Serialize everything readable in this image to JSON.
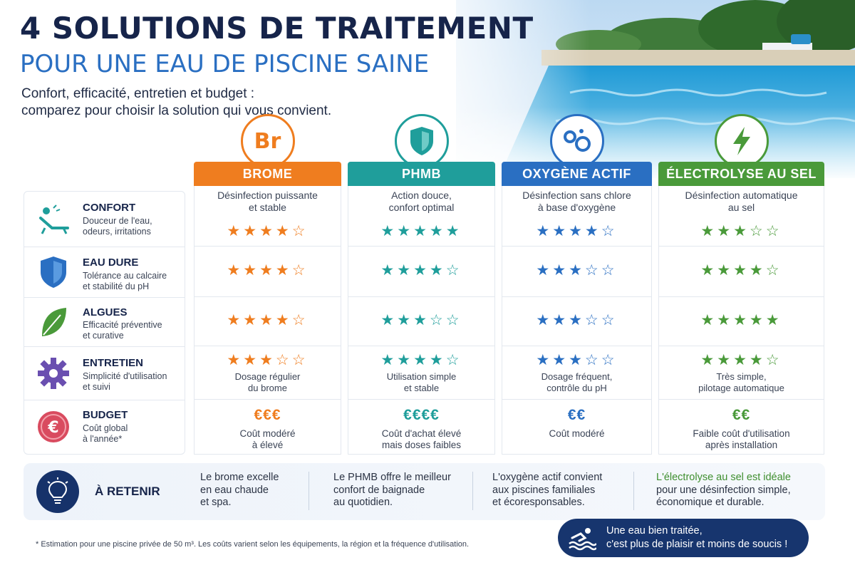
{
  "header": {
    "title_line1": "4 SOLUTIONS DE TRAITEMENT",
    "title_line2": "POUR UNE EAU DE PISCINE SAINE",
    "subtitle_line1": "Confort, efficacité, entretien et budget :",
    "subtitle_line2": "comparez pour choisir la solution qui vous convient."
  },
  "criteria": [
    {
      "title": "CONFORT",
      "sub1": "Douceur de l'eau,",
      "sub2": "odeurs, irritations",
      "icon": "lounger-icon"
    },
    {
      "title": "EAU DURE",
      "sub1": "Tolérance au calcaire",
      "sub2": "et stabilité du pH",
      "icon": "shield-icon"
    },
    {
      "title": "ALGUES",
      "sub1": "Efficacité préventive",
      "sub2": "et curative",
      "icon": "leaf-icon"
    },
    {
      "title": "ENTRETIEN",
      "sub1": "Simplicité d'utilisation",
      "sub2": "et suivi",
      "icon": "gear-icon"
    },
    {
      "title": "BUDGET",
      "sub1": "Coût global",
      "sub2": "à l'année*",
      "icon": "euro-icon"
    }
  ],
  "solutions": [
    {
      "name": "BROME",
      "color": "#ef7d1f",
      "icon_text": "Br",
      "desc1": "Désinfection puissante",
      "desc2": "et stable",
      "stars": [
        "★★★★☆",
        "★★★★☆",
        "★★★★☆",
        "★★★☆☆"
      ],
      "entretien_note1": "Dosage régulier",
      "entretien_note2": "du brome",
      "cost": "€€€",
      "cost_note1": "Coût modéré",
      "cost_note2": "à élevé"
    },
    {
      "name": "PHMB",
      "color": "#1f9e9b",
      "icon_text": "",
      "desc1": "Action douce,",
      "desc2": "confort optimal",
      "stars": [
        "★★★★★",
        "★★★★☆",
        "★★★☆☆",
        "★★★★☆"
      ],
      "entretien_note1": "Utilisation simple",
      "entretien_note2": "et stable",
      "cost": "€€€€",
      "cost_note1": "Coût d'achat élevé",
      "cost_note2": "mais doses faibles"
    },
    {
      "name": "OXYGÈNE ACTIF",
      "color": "#2a6fc2",
      "icon_text": "",
      "desc1": "Désinfection sans chlore",
      "desc2": "à base d'oxygène",
      "stars": [
        "★★★★☆",
        "★★★☆☆",
        "★★★☆☆",
        "★★★☆☆"
      ],
      "entretien_note1": "Dosage fréquent,",
      "entretien_note2": "contrôle du pH",
      "cost": "€€",
      "cost_note1": "Coût modéré",
      "cost_note2": ""
    },
    {
      "name": "ÉLECTROLYSE AU SEL",
      "color": "#4a9a3a",
      "icon_text": "",
      "desc1": "Désinfection automatique",
      "desc2": "au sel",
      "stars": [
        "★★★☆☆",
        "★★★★☆",
        "★★★★★",
        "★★★★☆"
      ],
      "entretien_note1": "Très simple,",
      "entretien_note2": "pilotage automatique",
      "cost": "€€",
      "cost_note1": "Faible coût d'utilisation",
      "cost_note2": "après installation"
    }
  ],
  "retenir": {
    "label": "À RETENIR",
    "items": [
      {
        "l1": "Le brome excelle",
        "l2": "en eau chaude",
        "l3": "et spa."
      },
      {
        "l1": "Le PHMB offre le meilleur",
        "l2": "confort de baignade",
        "l3": "au quotidien."
      },
      {
        "l1": "L'oxygène actif convient",
        "l2": "aux piscines familiales",
        "l3": "et écoresponsables."
      },
      {
        "l1": "L'électrolyse au sel est idéale",
        "l2": "pour une désinfection simple,",
        "l3": "économique et durable."
      }
    ]
  },
  "footnote": "* Estimation pour une piscine privée de 50 m³. Les coûts varient selon les équipements, la région et la fréquence d'utilisation.",
  "cta": {
    "line1": "Une eau bien traitée,",
    "line2": "c'est plus de plaisir et moins de soucis !"
  }
}
